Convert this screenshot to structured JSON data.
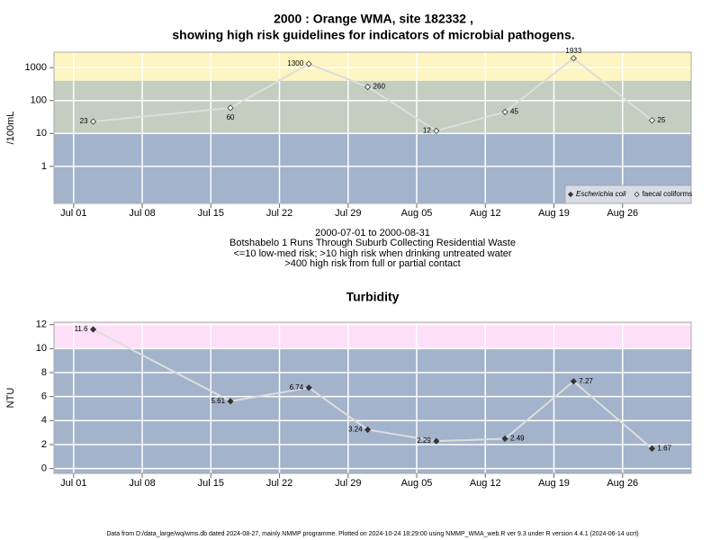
{
  "title": [
    "2000 : Orange WMA, site 182332 ,",
    "showing high risk guidelines for indicators of microbial pathogens."
  ],
  "footer": "Data from D:/data_large/wq/wms.db dated 2024-08-27, mainly NMMP programme. Plotted on 2024-10-24 18:29:00 using NMMP_WMA_web.R ver 9.3 under R version 4.4.1 (2024-06-14 ucrt)",
  "chart_data": [
    {
      "type": "line",
      "y_label": "/100mL",
      "log_scale": true,
      "grid": true,
      "legend": "bottom-right",
      "x": [
        "Jul 03",
        "Jul 17",
        "Jul 25",
        "Jul 31",
        "Aug 07",
        "Aug 14",
        "Aug 21",
        "Aug 29"
      ],
      "xlim": [
        "Jun 29",
        "Sep 02"
      ],
      "xticks": [
        "Jul 01",
        "Jul 08",
        "Jul 15",
        "Jul 22",
        "Jul 29",
        "Aug 05",
        "Aug 12",
        "Aug 19",
        "Aug 26"
      ],
      "ylim": [
        0.075,
        2950
      ],
      "yticks": [
        1,
        10,
        100,
        1000
      ],
      "bands": [
        {
          "to": 10,
          "color": "#a2b3cb"
        },
        {
          "from": 10,
          "to": 400,
          "color": "#c3cdc0"
        },
        {
          "from": 400,
          "color": "#fdf5c2"
        }
      ],
      "series": [
        {
          "name": "Escherichia coli",
          "marker": "filled",
          "color": "#333333",
          "values": [
            null,
            null,
            null,
            null,
            null,
            null,
            null,
            null
          ]
        },
        {
          "name": "faecal coliforms",
          "marker": "open",
          "color": "#dddddd",
          "values": [
            23,
            60,
            1300,
            260,
            12,
            45,
            1933,
            25
          ]
        }
      ],
      "notes": [
        "2000-07-01 to 2000-08-31",
        "Botshabelo 1 Runs Through Suburb Collecting Residential Waste",
        "<=10 low-med risk; >10 high risk when drinking untreated water",
        ">400 high risk from full or partial contact"
      ]
    },
    {
      "type": "line",
      "title": "Turbidity",
      "y_label": "NTU",
      "log_scale": false,
      "grid": true,
      "x": [
        "Jul 03",
        "Jul 17",
        "Jul 25",
        "Jul 31",
        "Aug 07",
        "Aug 14",
        "Aug 21",
        "Aug 29"
      ],
      "xlim": [
        "Jun 29",
        "Sep 02"
      ],
      "xticks": [
        "Jul 01",
        "Jul 08",
        "Jul 15",
        "Jul 22",
        "Jul 29",
        "Aug 05",
        "Aug 12",
        "Aug 19",
        "Aug 26"
      ],
      "ylim": [
        -0.4,
        12.2
      ],
      "yticks": [
        0,
        2,
        4,
        6,
        8,
        10,
        12
      ],
      "bands": [
        {
          "to": 10,
          "color": "#a2b3cb"
        },
        {
          "from": 10,
          "color": "#fde0f7"
        }
      ],
      "series": [
        {
          "name": "Turbidity",
          "marker": "filled",
          "color": "#dddddd",
          "values": [
            11.6,
            5.61,
            6.74,
            3.24,
            2.29,
            2.49,
            7.27,
            1.67
          ]
        }
      ]
    }
  ]
}
